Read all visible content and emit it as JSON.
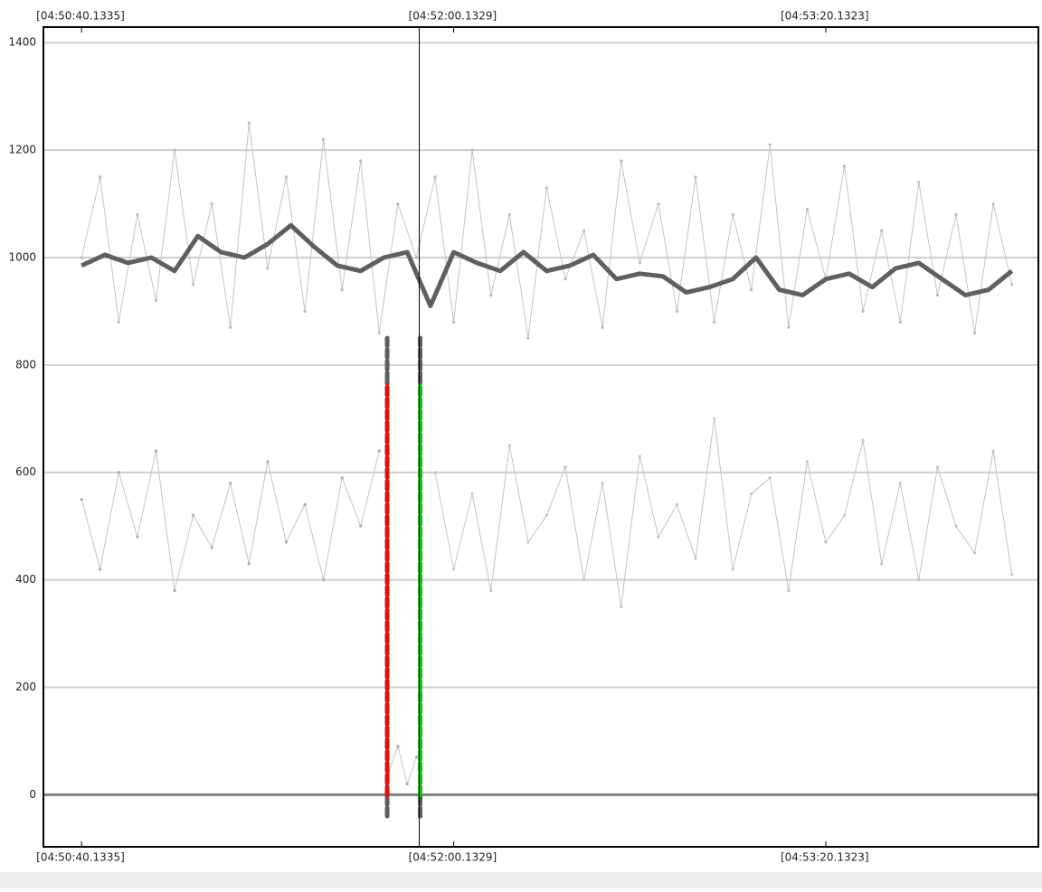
{
  "chart_data": {
    "type": "line",
    "xlim": [
      -8.2,
      205.7
    ],
    "ylim": [
      -97,
      1429
    ],
    "xticks": [
      {
        "value": 0,
        "label": "[04:50:40.1335]"
      },
      {
        "value": 80,
        "label": "[04:52:00.1329]"
      },
      {
        "value": 160,
        "label": "[04:53:20.1323]"
      }
    ],
    "yticks": [
      0,
      200,
      400,
      600,
      800,
      1000,
      1200,
      1400
    ],
    "grid": true,
    "cursor_x": 72.6,
    "series": [
      {
        "color": "#c4c4c4",
        "point_color": "#a8c8a8",
        "width": 1,
        "x": [
          0,
          4,
          8,
          12,
          16,
          20,
          24,
          28,
          32,
          36,
          40,
          44,
          48,
          52,
          56,
          60,
          64,
          68,
          72,
          76,
          80,
          84,
          88,
          92,
          96,
          100,
          104,
          108,
          112,
          116,
          120,
          124,
          128,
          132,
          136,
          140,
          144,
          148,
          152,
          156,
          160,
          164,
          168,
          172,
          176,
          180,
          184,
          188,
          192,
          196,
          200
        ],
        "values": [
          1000,
          1150,
          880,
          1080,
          920,
          1200,
          950,
          1100,
          870,
          1250,
          980,
          1150,
          900,
          1220,
          940,
          1180,
          860,
          1100,
          1000,
          1150,
          880,
          1200,
          930,
          1080,
          850,
          1130,
          960,
          1050,
          870,
          1180,
          990,
          1100,
          900,
          1150,
          880,
          1080,
          940,
          1210,
          870,
          1090,
          960,
          1170,
          900,
          1050,
          880,
          1140,
          930,
          1080,
          860,
          1100,
          950
        ]
      },
      {
        "color": "#c4c4c4",
        "point_color": "#9fa6e0",
        "width": 1,
        "x": [
          0,
          4,
          8,
          12,
          16,
          20,
          24,
          28,
          32,
          36,
          40,
          44,
          48,
          52,
          56,
          60,
          64
        ],
        "values": [
          550,
          420,
          600,
          480,
          640,
          380,
          520,
          460,
          580,
          430,
          620,
          470,
          540,
          400,
          590,
          500,
          640
        ]
      },
      {
        "color": "#c4c4c4",
        "point_color": "#9fa6e0",
        "width": 1,
        "x": [
          66,
          68,
          70,
          72
        ],
        "values": [
          40,
          90,
          20,
          70
        ]
      },
      {
        "color": "#c4c4c4",
        "point_color": "#c4c4c4",
        "width": 1,
        "x": [
          76,
          80,
          84,
          88,
          92,
          96,
          100,
          104,
          108,
          112,
          116,
          120,
          124,
          128,
          132,
          136,
          140,
          144,
          148,
          152,
          156,
          160,
          164,
          168,
          172,
          176,
          180,
          184,
          188,
          192,
          196,
          200
        ],
        "values": [
          600,
          420,
          560,
          380,
          650,
          470,
          520,
          610,
          400,
          580,
          350,
          630,
          480,
          540,
          440,
          700,
          420,
          560,
          590,
          380,
          620,
          470,
          520,
          660,
          430,
          580,
          400,
          610,
          500,
          450,
          640,
          410
        ]
      },
      {
        "color": "#5f5f5f",
        "width": 5,
        "x": [
          0,
          5,
          10,
          15,
          20,
          25,
          30,
          35,
          40,
          45,
          50,
          55,
          60,
          65,
          70,
          75,
          80,
          85,
          90,
          95,
          100,
          105,
          110,
          115,
          120,
          125,
          130,
          135,
          140,
          145,
          150,
          155,
          160,
          165,
          170,
          175,
          180,
          185,
          190,
          195,
          200
        ],
        "values": [
          985,
          1005,
          990,
          1000,
          975,
          1040,
          1010,
          1000,
          1025,
          1060,
          1020,
          985,
          975,
          1000,
          1010,
          910,
          1010,
          990,
          975,
          1010,
          975,
          985,
          1005,
          960,
          970,
          965,
          935,
          945,
          960,
          1000,
          940,
          930,
          960,
          970,
          945,
          980,
          990,
          960,
          930,
          940,
          975
        ]
      }
    ],
    "markers": [
      {
        "x": 65.7,
        "color": "#e01010",
        "y": [
          -40,
          0,
          770,
          850
        ]
      },
      {
        "x": 72.8,
        "color": "#18c018",
        "y": [
          -40,
          0,
          770,
          850
        ]
      }
    ]
  }
}
